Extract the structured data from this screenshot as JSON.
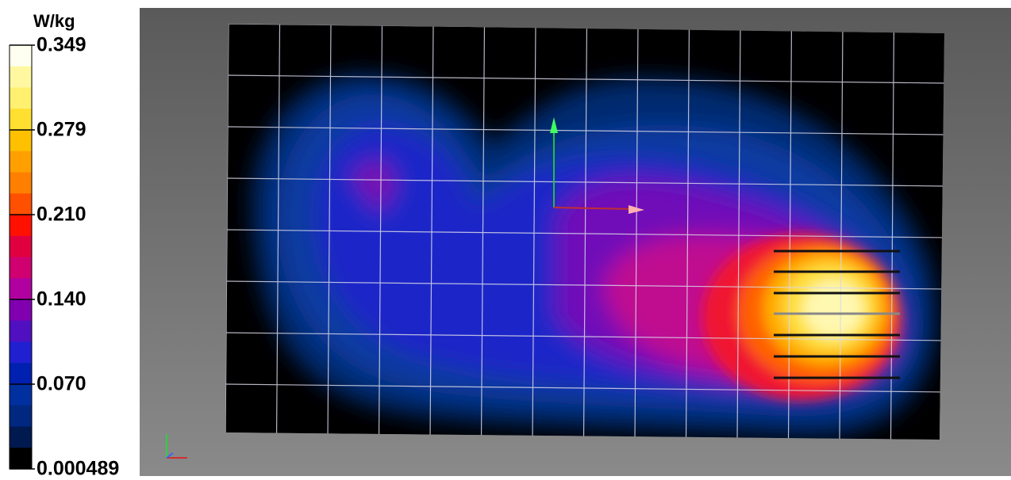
{
  "colorbar": {
    "unit": "W/kg",
    "labels": [
      "0.349",
      "0.279",
      "0.210",
      "0.140",
      "0.070",
      "0.000489"
    ]
  }
}
